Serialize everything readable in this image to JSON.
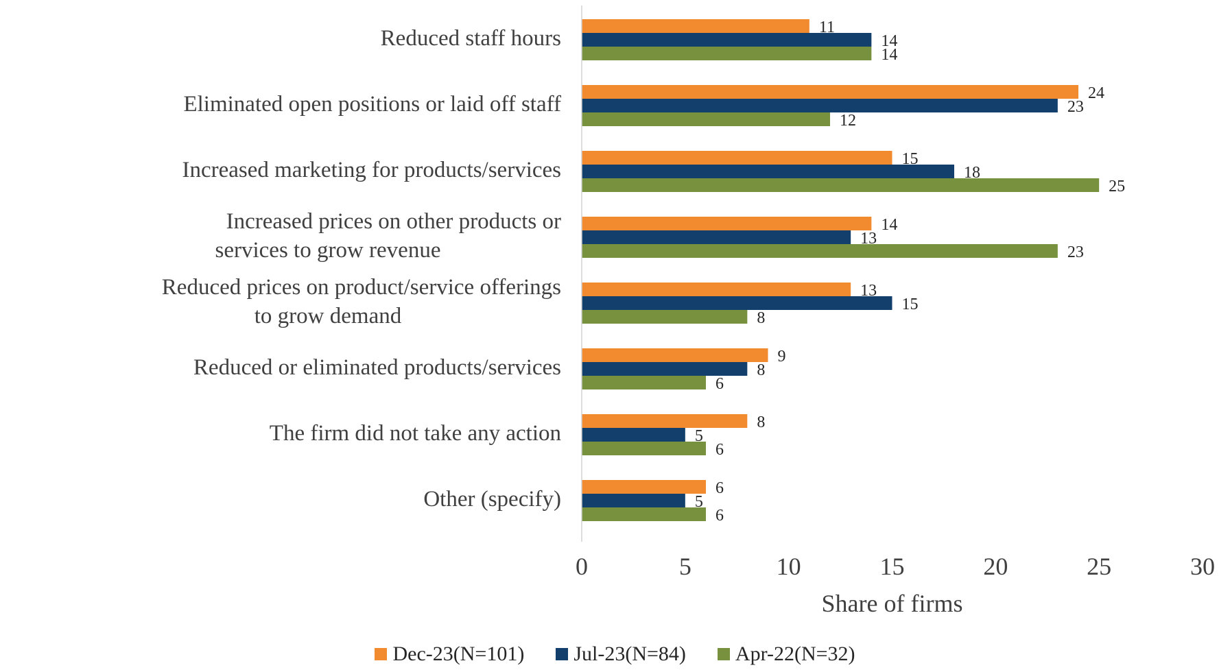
{
  "chart_data": {
    "type": "bar",
    "orientation": "horizontal",
    "categories": [
      "Reduced staff hours",
      "Eliminated open positions or laid off staff",
      "Increased marketing for products/services",
      "Increased prices on other products or services to grow revenue",
      "Reduced prices on product/service offerings to grow demand",
      "Reduced or eliminated products/services",
      "The firm did not take any action",
      "Other (specify)"
    ],
    "series": [
      {
        "name": "Dec-23(N=101)",
        "color": "#f28a30",
        "values": [
          11,
          24,
          15,
          14,
          13,
          9,
          8,
          6
        ]
      },
      {
        "name": "Jul-23(N=84)",
        "color": "#123f6b",
        "values": [
          14,
          23,
          18,
          13,
          15,
          8,
          5,
          5
        ]
      },
      {
        "name": "Apr-22(N=32)",
        "color": "#77913f",
        "values": [
          14,
          12,
          25,
          23,
          8,
          6,
          6,
          6
        ]
      }
    ],
    "xlabel": "Share of firms",
    "xlim": [
      0,
      30
    ],
    "xticks": [
      0,
      5,
      10,
      15,
      20,
      25,
      30
    ],
    "grid": false,
    "legend_position": "bottom"
  }
}
